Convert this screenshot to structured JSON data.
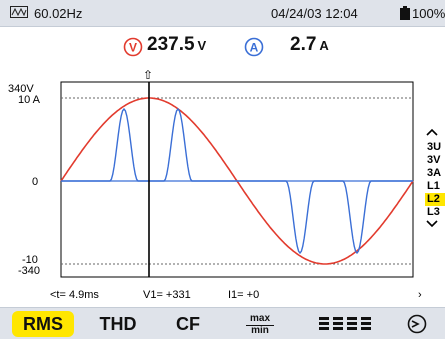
{
  "status": {
    "frequency": "60.02Hz",
    "datetime": "04/24/03 12:04",
    "battery": "100%"
  },
  "readout": {
    "voltage": "237.5",
    "voltage_unit": "V",
    "current": "2.7",
    "current_unit": "A",
    "voltage_channel": "V",
    "current_channel": "A"
  },
  "plot": {
    "y_top_v": "340V",
    "y_top_a": "10 A",
    "y_zero": "0",
    "y_bottom_a": "-10",
    "y_bottom_v": "-340",
    "voltage_color": "#e23b2e",
    "current_color": "#3b6fd6",
    "cursor_marker": "⇧"
  },
  "scales": {
    "items": [
      "3U",
      "3V",
      "3A",
      "L1",
      "L2",
      "L3"
    ],
    "selected_index": 4
  },
  "cursor": {
    "t": "<t= 4.9ms",
    "v": "V1= +331",
    "i": "I1= +0",
    "next": "›"
  },
  "softkeys": {
    "rms": "RMS",
    "thd": "THD",
    "cf": "CF",
    "maxmin_top": "max",
    "maxmin_bottom": "min"
  },
  "icons": {
    "scroll_up": "chevron-up-icon",
    "scroll_down": "chevron-down-icon"
  },
  "chart_data": {
    "type": "line",
    "series": [
      {
        "values": [
          0,
          340,
          0,
          -340,
          0
        ]
      },
      {
        "values": [
          0,
          10,
          0,
          -10,
          0
        ]
      }
    ]
  }
}
